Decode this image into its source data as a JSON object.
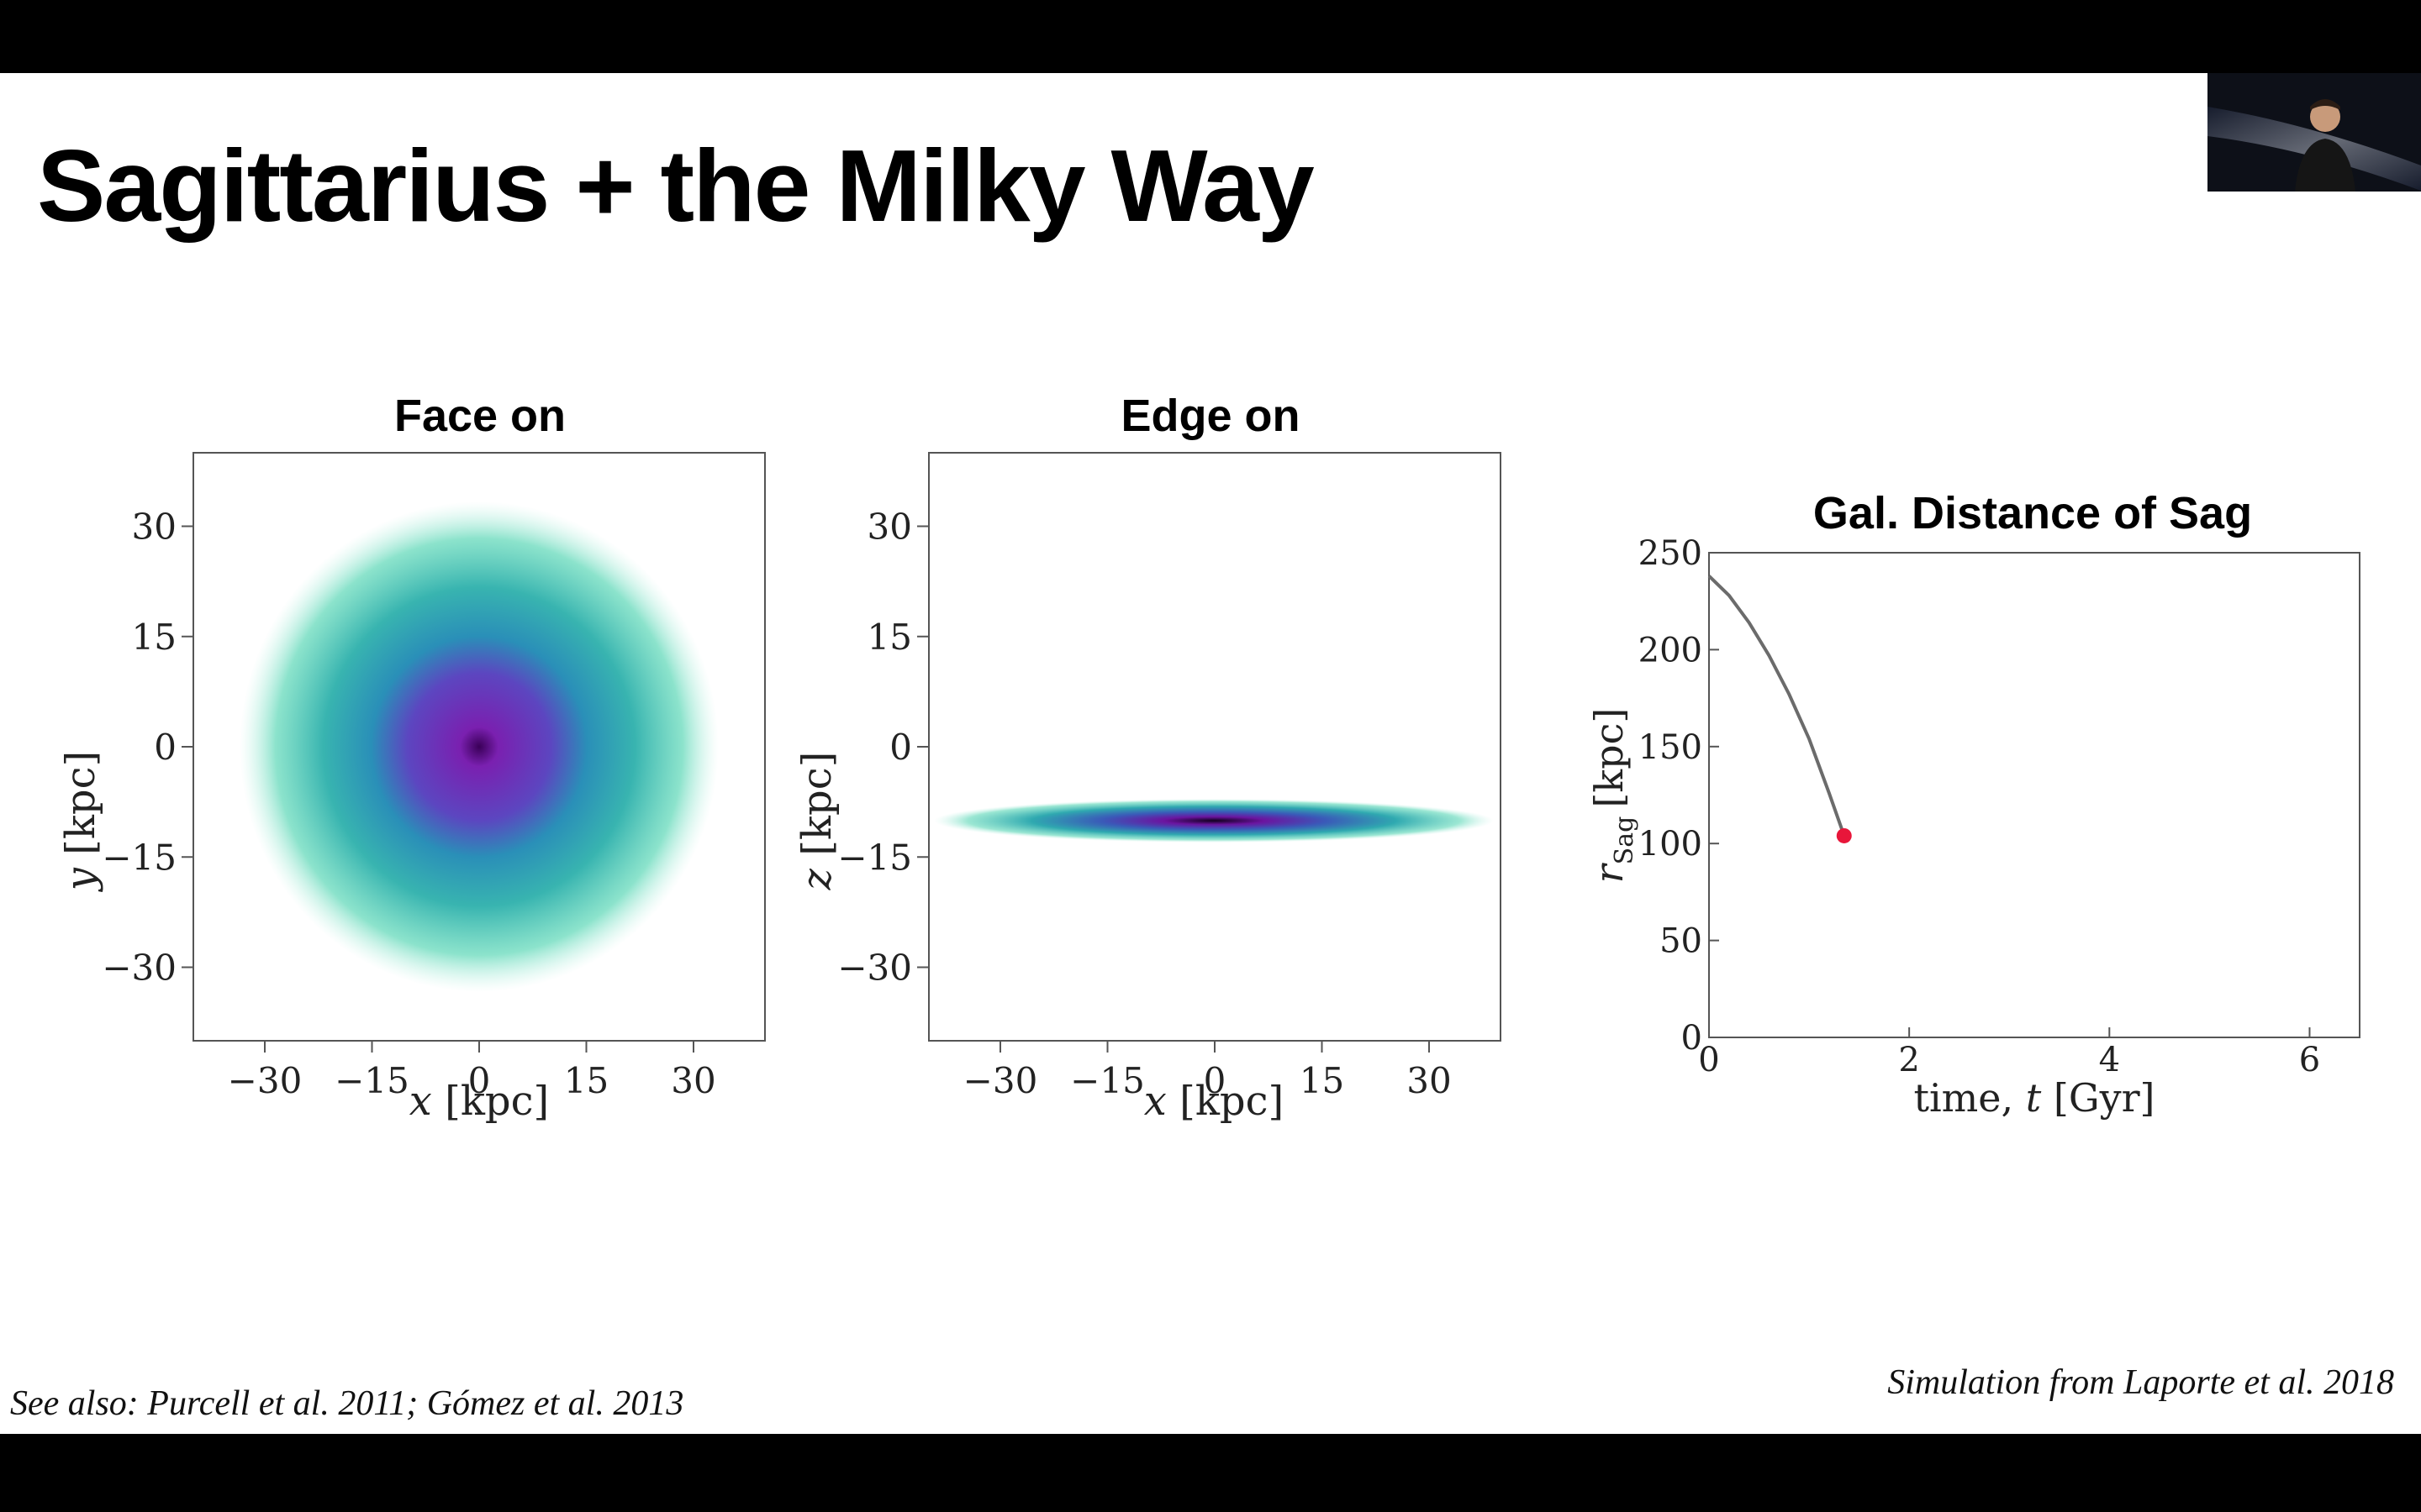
{
  "slide": {
    "title": "Sagittarius + the Milky Way"
  },
  "footnotes": {
    "see_also": "See also: Purcell et al. 2011;  Gómez et al. 2013",
    "simulation_credit": "Simulation from Laporte et al. 2018"
  },
  "webcam": {
    "description_icon": "presenter-video-thumbnail"
  },
  "colors": {
    "teal": "#6fe0c0",
    "mid": "#2a9fb5",
    "purple": "#7a20b0",
    "dark": "#1a0030",
    "red_point": "#e8163a",
    "curve": "#666666"
  },
  "chart_data": [
    {
      "type": "heatmap",
      "title": "Face on",
      "xlabel": "x [kpc]",
      "ylabel": "y [kpc]",
      "xticks": [
        "−30",
        "−15",
        "0",
        "15",
        "30"
      ],
      "yticks": [
        "30",
        "15",
        "0",
        "−15",
        "−30"
      ],
      "xlim": [
        -40,
        40
      ],
      "ylim": [
        -40,
        40
      ],
      "description": "circular stellar disk density, dense purple core"
    },
    {
      "type": "heatmap",
      "title": "Edge on",
      "xlabel": "x [kpc]",
      "ylabel": "z [kpc]",
      "xticks": [
        "−30",
        "−15",
        "0",
        "15",
        "30"
      ],
      "yticks": [
        "30",
        "15",
        "0",
        "−15",
        "−30"
      ],
      "xlim": [
        -40,
        40
      ],
      "ylim": [
        -40,
        40
      ],
      "description": "thin disk seen edge-on"
    },
    {
      "type": "line",
      "title": "Gal. Distance of Sag",
      "xlabel_prefix": "time, ",
      "xlabel_var": "t",
      "xlabel_unit": " [Gyr]",
      "ylabel_var": "r",
      "ylabel_sub": "Sag",
      "ylabel_unit": "[kpc]",
      "xlim": [
        0,
        6.5
      ],
      "ylim": [
        0,
        250
      ],
      "xticks": [
        0,
        2,
        4,
        6
      ],
      "yticks": [
        0,
        50,
        100,
        150,
        200,
        250
      ],
      "x": [
        0,
        0.2,
        0.4,
        0.6,
        0.8,
        1.0,
        1.2,
        1.35
      ],
      "y": [
        238,
        228,
        214,
        197,
        177,
        154,
        126,
        104
      ],
      "point": {
        "x": 1.35,
        "y": 104
      }
    }
  ]
}
